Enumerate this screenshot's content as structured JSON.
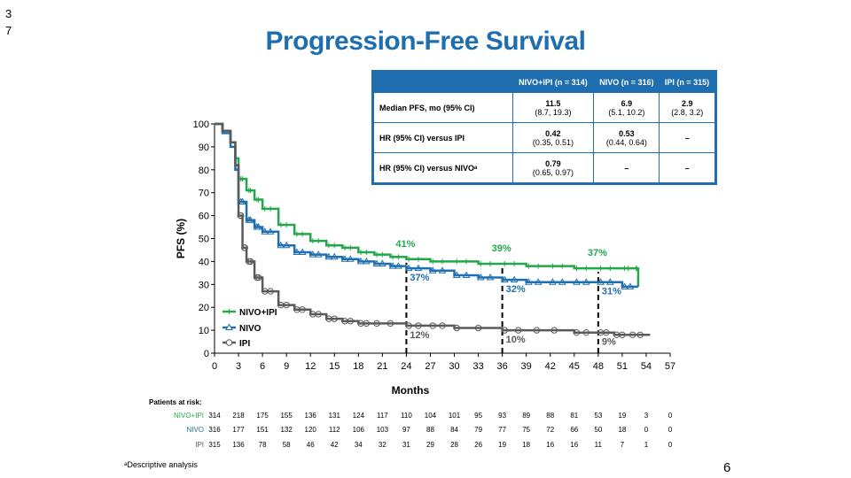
{
  "slide": {
    "top_number": "3\n7",
    "page_number": "6"
  },
  "title": "Progression-Free Survival",
  "stats_table": {
    "headers": [
      "",
      "NIVO+IPI (n = 314)",
      "NIVO (n = 316)",
      "IPI (n = 315)"
    ],
    "rows": [
      {
        "label": "Median PFS, mo (95% CI)",
        "cells": [
          {
            "v": "11.5",
            "ci": "(8.7, 19.3)"
          },
          {
            "v": "6.9",
            "ci": "(5.1, 10.2)"
          },
          {
            "v": "2.9",
            "ci": "(2.8, 3.2)"
          }
        ]
      },
      {
        "label": "HR (95% CI) versus IPI",
        "cells": [
          {
            "v": "0.42",
            "ci": "(0.35, 0.51)"
          },
          {
            "v": "0.53",
            "ci": "(0.44, 0.64)"
          },
          {
            "v": "–",
            "ci": ""
          }
        ]
      },
      {
        "label": "HR (95% CI) versus NIVOᵃ",
        "cells": [
          {
            "v": "0.79",
            "ci": "(0.65, 0.97)"
          },
          {
            "v": "–",
            "ci": ""
          },
          {
            "v": "–",
            "ci": ""
          }
        ]
      }
    ]
  },
  "footnote": "ᵃDescriptive analysis",
  "colors": {
    "nivo_ipi": "#22a84a",
    "nivo": "#1f6fb0",
    "ipi": "#5a5a5a",
    "title": "#1f6fb0"
  },
  "chart_data": {
    "type": "line",
    "xlabel": "Months",
    "ylabel": "PFS (%)",
    "xlim": [
      0,
      57
    ],
    "ylim": [
      0,
      100
    ],
    "xticks": [
      0,
      3,
      6,
      9,
      12,
      15,
      18,
      21,
      24,
      27,
      30,
      33,
      36,
      39,
      42,
      45,
      48,
      51,
      54,
      57
    ],
    "yticks": [
      0,
      10,
      20,
      30,
      40,
      50,
      60,
      70,
      80,
      90,
      100
    ],
    "legend": [
      "NIVO+IPI",
      "NIVO",
      "IPI"
    ],
    "legend_position": "bottom-left",
    "series": [
      {
        "name": "NIVO+IPI",
        "color_key": "nivo_ipi",
        "x": [
          0,
          1,
          2,
          2.6,
          3,
          4,
          5,
          6,
          8,
          10,
          12,
          14,
          16,
          18,
          20,
          22,
          24,
          27,
          30,
          33,
          36,
          39,
          42,
          45,
          48,
          51,
          52.5,
          53
        ],
        "y": [
          100,
          97,
          92,
          85,
          76,
          71,
          67,
          63,
          56,
          52,
          49,
          47,
          46,
          44,
          43,
          42,
          41,
          40,
          40,
          39,
          39,
          38,
          38,
          37,
          37,
          37,
          37,
          29
        ]
      },
      {
        "name": "NIVO",
        "color_key": "nivo",
        "x": [
          0,
          1,
          2,
          2.6,
          3,
          4,
          5,
          6,
          8,
          10,
          12,
          14,
          16,
          18,
          20,
          22,
          24,
          27,
          30,
          33,
          36,
          39,
          42,
          45,
          48,
          51,
          53
        ],
        "y": [
          100,
          96,
          90,
          80,
          66,
          58,
          55,
          53,
          47,
          44,
          43,
          42,
          41,
          40,
          39,
          38,
          37,
          36,
          34,
          33,
          32,
          31,
          31,
          31,
          31,
          29,
          29
        ]
      },
      {
        "name": "IPI",
        "color_key": "ipi",
        "x": [
          0,
          1,
          2,
          2.6,
          3,
          3.5,
          4,
          5,
          6,
          8,
          10,
          12,
          14,
          16,
          18,
          20,
          24,
          27,
          30,
          36,
          40,
          45,
          48,
          50,
          52,
          54.5
        ],
        "y": [
          100,
          97,
          92,
          82,
          60,
          46,
          40,
          33,
          27,
          21,
          19,
          17,
          15,
          14,
          13,
          13,
          12,
          12,
          11,
          10,
          10,
          9,
          9,
          8,
          8,
          8
        ]
      }
    ],
    "annotations": [
      {
        "x": 24,
        "lines": [
          {
            "text": "41%",
            "series": "NIVO+IPI",
            "y": 41
          },
          {
            "text": "37%",
            "series": "NIVO",
            "y": 37
          },
          {
            "text": "12%",
            "series": "IPI",
            "y": 12
          }
        ]
      },
      {
        "x": 36,
        "lines": [
          {
            "text": "39%",
            "series": "NIVO+IPI",
            "y": 39
          },
          {
            "text": "32%",
            "series": "NIVO",
            "y": 32
          },
          {
            "text": "10%",
            "series": "IPI",
            "y": 10
          }
        ]
      },
      {
        "x": 48,
        "lines": [
          {
            "text": "37%",
            "series": "NIVO+IPI",
            "y": 37
          },
          {
            "text": "31%",
            "series": "NIVO",
            "y": 31
          },
          {
            "text": "9%",
            "series": "IPI",
            "y": 9
          }
        ]
      }
    ],
    "at_risk": {
      "title": "Patients at risk:",
      "rows": [
        {
          "name": "NIVO+IPI",
          "color_key": "nivo_ipi",
          "values": [
            314,
            218,
            175,
            155,
            136,
            131,
            124,
            117,
            110,
            104,
            101,
            95,
            93,
            89,
            88,
            81,
            53,
            19,
            3,
            0
          ]
        },
        {
          "name": "NIVO",
          "color_key": "nivo",
          "values": [
            316,
            177,
            151,
            132,
            120,
            112,
            106,
            103,
            97,
            88,
            84,
            79,
            77,
            75,
            72,
            66,
            50,
            18,
            0,
            0
          ]
        },
        {
          "name": "IPI",
          "color_key": "ipi",
          "values": [
            315,
            136,
            78,
            58,
            46,
            42,
            34,
            32,
            31,
            29,
            28,
            26,
            19,
            18,
            16,
            16,
            11,
            7,
            1,
            0
          ]
        }
      ]
    }
  }
}
